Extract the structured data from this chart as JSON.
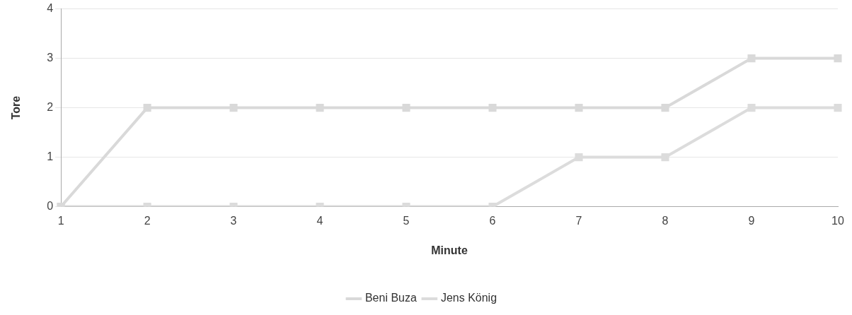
{
  "chart_data": {
    "type": "line",
    "xlabel": "Minute",
    "ylabel": "Tore",
    "categories": [
      "1",
      "2",
      "3",
      "4",
      "5",
      "6",
      "7",
      "8",
      "9",
      "10"
    ],
    "series": [
      {
        "name": "Beni Buza",
        "color": "#d9d9d9",
        "values": [
          0,
          2,
          2,
          2,
          2,
          2,
          2,
          2,
          3,
          3
        ]
      },
      {
        "name": "Jens König",
        "color": "#dcdcdc",
        "values": [
          0,
          0,
          0,
          0,
          0,
          0,
          1,
          1,
          2,
          2
        ]
      }
    ],
    "ylim": [
      0,
      4
    ],
    "yticks": [
      0,
      1,
      2,
      3,
      4
    ],
    "grid": "y",
    "legend": "bottom",
    "marker": "square",
    "line_style": "solid"
  }
}
